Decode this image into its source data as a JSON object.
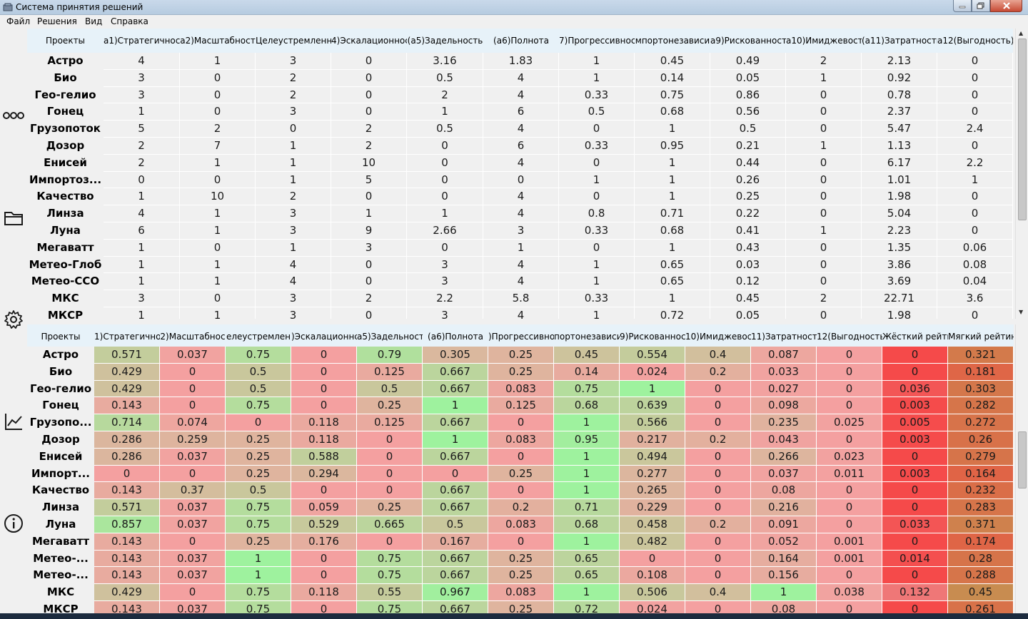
{
  "window": {
    "title": "Система принятия решений"
  },
  "menu": {
    "file": "Файл",
    "solutions": "Решения",
    "view": "Вид",
    "help": "Справка"
  },
  "sidebar_icons": [
    "dots-icon",
    "folder-icon",
    "gear-icon",
    "chart-icon",
    "info-icon"
  ],
  "top_table": {
    "headers": [
      "Проекты",
      "а1)Стратегичност",
      "а2)Масштабност",
      "Целеустремленн",
      "4)Эскалационнос",
      "(а5)Задельность",
      "(а6)Полнота",
      "7)Прогрессивнос",
      "мпортонезависи",
      "а9)Рискованност",
      "а10)Имиджевост",
      "(а11)Затратность",
      "а12(Выгодность)"
    ],
    "rows": [
      [
        "Астро",
        "4",
        "1",
        "3",
        "0",
        "3.16",
        "1.83",
        "1",
        "0.45",
        "0.49",
        "2",
        "2.13",
        "0"
      ],
      [
        "Био",
        "3",
        "0",
        "2",
        "0",
        "0.5",
        "4",
        "1",
        "0.14",
        "0.05",
        "1",
        "0.92",
        "0"
      ],
      [
        "Гео-гелио",
        "3",
        "0",
        "2",
        "0",
        "2",
        "4",
        "0.33",
        "0.75",
        "0.86",
        "0",
        "0.78",
        "0"
      ],
      [
        "Гонец",
        "1",
        "0",
        "3",
        "0",
        "1",
        "6",
        "0.5",
        "0.68",
        "0.56",
        "0",
        "2.37",
        "0"
      ],
      [
        "Грузопоток",
        "5",
        "2",
        "0",
        "2",
        "0.5",
        "4",
        "0",
        "1",
        "0.5",
        "0",
        "5.47",
        "2.4"
      ],
      [
        "Дозор",
        "2",
        "7",
        "1",
        "2",
        "0",
        "6",
        "0.33",
        "0.95",
        "0.21",
        "1",
        "1.13",
        "0"
      ],
      [
        "Енисей",
        "2",
        "1",
        "1",
        "10",
        "0",
        "4",
        "0",
        "1",
        "0.44",
        "0",
        "6.17",
        "2.2"
      ],
      [
        "Импортоз...",
        "0",
        "0",
        "1",
        "5",
        "0",
        "0",
        "1",
        "1",
        "0.26",
        "0",
        "1.01",
        "1"
      ],
      [
        "Качество",
        "1",
        "10",
        "2",
        "0",
        "0",
        "4",
        "0",
        "1",
        "0.25",
        "0",
        "1.98",
        "0"
      ],
      [
        "Линза",
        "4",
        "1",
        "3",
        "1",
        "1",
        "4",
        "0.8",
        "0.71",
        "0.22",
        "0",
        "5.04",
        "0"
      ],
      [
        "Луна",
        "6",
        "1",
        "3",
        "9",
        "2.66",
        "3",
        "0.33",
        "0.68",
        "0.41",
        "1",
        "2.23",
        "0"
      ],
      [
        "Мегаватт",
        "1",
        "0",
        "1",
        "3",
        "0",
        "1",
        "0",
        "1",
        "0.43",
        "0",
        "1.35",
        "0.06"
      ],
      [
        "Метео-Глоб",
        "1",
        "1",
        "4",
        "0",
        "3",
        "4",
        "1",
        "0.65",
        "0.03",
        "0",
        "3.86",
        "0.08"
      ],
      [
        "Метео-ССО",
        "1",
        "1",
        "4",
        "0",
        "3",
        "4",
        "1",
        "0.65",
        "0.12",
        "0",
        "3.69",
        "0.04"
      ],
      [
        "МКС",
        "3",
        "0",
        "3",
        "2",
        "2.2",
        "5.8",
        "0.33",
        "1",
        "0.45",
        "2",
        "22.71",
        "3.6"
      ],
      [
        "МКСР",
        "1",
        "1",
        "3",
        "0",
        "3",
        "4",
        "1",
        "0.72",
        "0.05",
        "0",
        "1.98",
        "0"
      ]
    ]
  },
  "bottom_table": {
    "headers": [
      "Проекты",
      "1)Стратегичнос",
      "2)Масштабнос",
      "елеустремлен",
      ")Эскалационнс",
      "а5)Задельност",
      "(а6)Полнота",
      ")Прогрессивно",
      "портонезависи",
      "9)Рискованнос",
      "10)Имиджевос",
      "11)Затратност",
      "12(Выгодность",
      "Жёсткий рейтинг",
      "Мягкий рейтин"
    ],
    "rows": [
      [
        "Астро",
        "0.571",
        "0.037",
        "0.75",
        "0",
        "0.79",
        "0.305",
        "0.25",
        "0.45",
        "0.554",
        "0.4",
        "0.087",
        "0",
        "0",
        "0.321"
      ],
      [
        "Био",
        "0.429",
        "0",
        "0.5",
        "0",
        "0.125",
        "0.667",
        "0.25",
        "0.14",
        "0.024",
        "0.2",
        "0.033",
        "0",
        "0",
        "0.181"
      ],
      [
        "Гео-гелио",
        "0.429",
        "0",
        "0.5",
        "0",
        "0.5",
        "0.667",
        "0.083",
        "0.75",
        "1",
        "0",
        "0.027",
        "0",
        "0.036",
        "0.303"
      ],
      [
        "Гонец",
        "0.143",
        "0",
        "0.75",
        "0",
        "0.25",
        "1",
        "0.125",
        "0.68",
        "0.639",
        "0",
        "0.098",
        "0",
        "0.003",
        "0.282"
      ],
      [
        "Грузопо...",
        "0.714",
        "0.074",
        "0",
        "0.118",
        "0.125",
        "0.667",
        "0",
        "1",
        "0.566",
        "0",
        "0.235",
        "0.025",
        "0.005",
        "0.272"
      ],
      [
        "Дозор",
        "0.286",
        "0.259",
        "0.25",
        "0.118",
        "0",
        "1",
        "0.083",
        "0.95",
        "0.217",
        "0.2",
        "0.043",
        "0",
        "0.003",
        "0.26"
      ],
      [
        "Енисей",
        "0.286",
        "0.037",
        "0.25",
        "0.588",
        "0",
        "0.667",
        "0",
        "1",
        "0.494",
        "0",
        "0.266",
        "0.023",
        "0",
        "0.279"
      ],
      [
        "Импорт...",
        "0",
        "0",
        "0.25",
        "0.294",
        "0",
        "0",
        "0.25",
        "1",
        "0.277",
        "0",
        "0.037",
        "0.011",
        "0.003",
        "0.164"
      ],
      [
        "Качество",
        "0.143",
        "0.37",
        "0.5",
        "0",
        "0",
        "0.667",
        "0",
        "1",
        "0.265",
        "0",
        "0.08",
        "0",
        "0",
        "0.232"
      ],
      [
        "Линза",
        "0.571",
        "0.037",
        "0.75",
        "0.059",
        "0.25",
        "0.667",
        "0.2",
        "0.71",
        "0.229",
        "0",
        "0.216",
        "0",
        "0",
        "0.283"
      ],
      [
        "Луна",
        "0.857",
        "0.037",
        "0.75",
        "0.529",
        "0.665",
        "0.5",
        "0.083",
        "0.68",
        "0.458",
        "0.2",
        "0.091",
        "0",
        "0.033",
        "0.371"
      ],
      [
        "Мегаватт",
        "0.143",
        "0",
        "0.25",
        "0.176",
        "0",
        "0.167",
        "0",
        "1",
        "0.482",
        "0",
        "0.052",
        "0.001",
        "0",
        "0.174"
      ],
      [
        "Метео-...",
        "0.143",
        "0.037",
        "1",
        "0",
        "0.75",
        "0.667",
        "0.25",
        "0.65",
        "0",
        "0",
        "0.164",
        "0.001",
        "0.014",
        "0.28"
      ],
      [
        "Метео-...",
        "0.143",
        "0.037",
        "1",
        "0",
        "0.75",
        "0.667",
        "0.25",
        "0.65",
        "0.108",
        "0",
        "0.156",
        "0",
        "0",
        "0.288"
      ],
      [
        "МКС",
        "0.429",
        "0",
        "0.75",
        "0.118",
        "0.55",
        "0.967",
        "0.083",
        "1",
        "0.506",
        "0.4",
        "1",
        "0.038",
        "0.132",
        "0.45"
      ],
      [
        "МКСР",
        "0.143",
        "0.037",
        "0.75",
        "0",
        "0.75",
        "0.667",
        "0.25",
        "0.72",
        "0.024",
        "0",
        "0.08",
        "0",
        "0",
        "0.261"
      ]
    ]
  },
  "colors": {
    "low": "#f4a0a0",
    "mid": "#c9c79c",
    "high": "#9ef29e",
    "rating_low": "#f54a4a",
    "rating_high": "#e9a0a0"
  }
}
